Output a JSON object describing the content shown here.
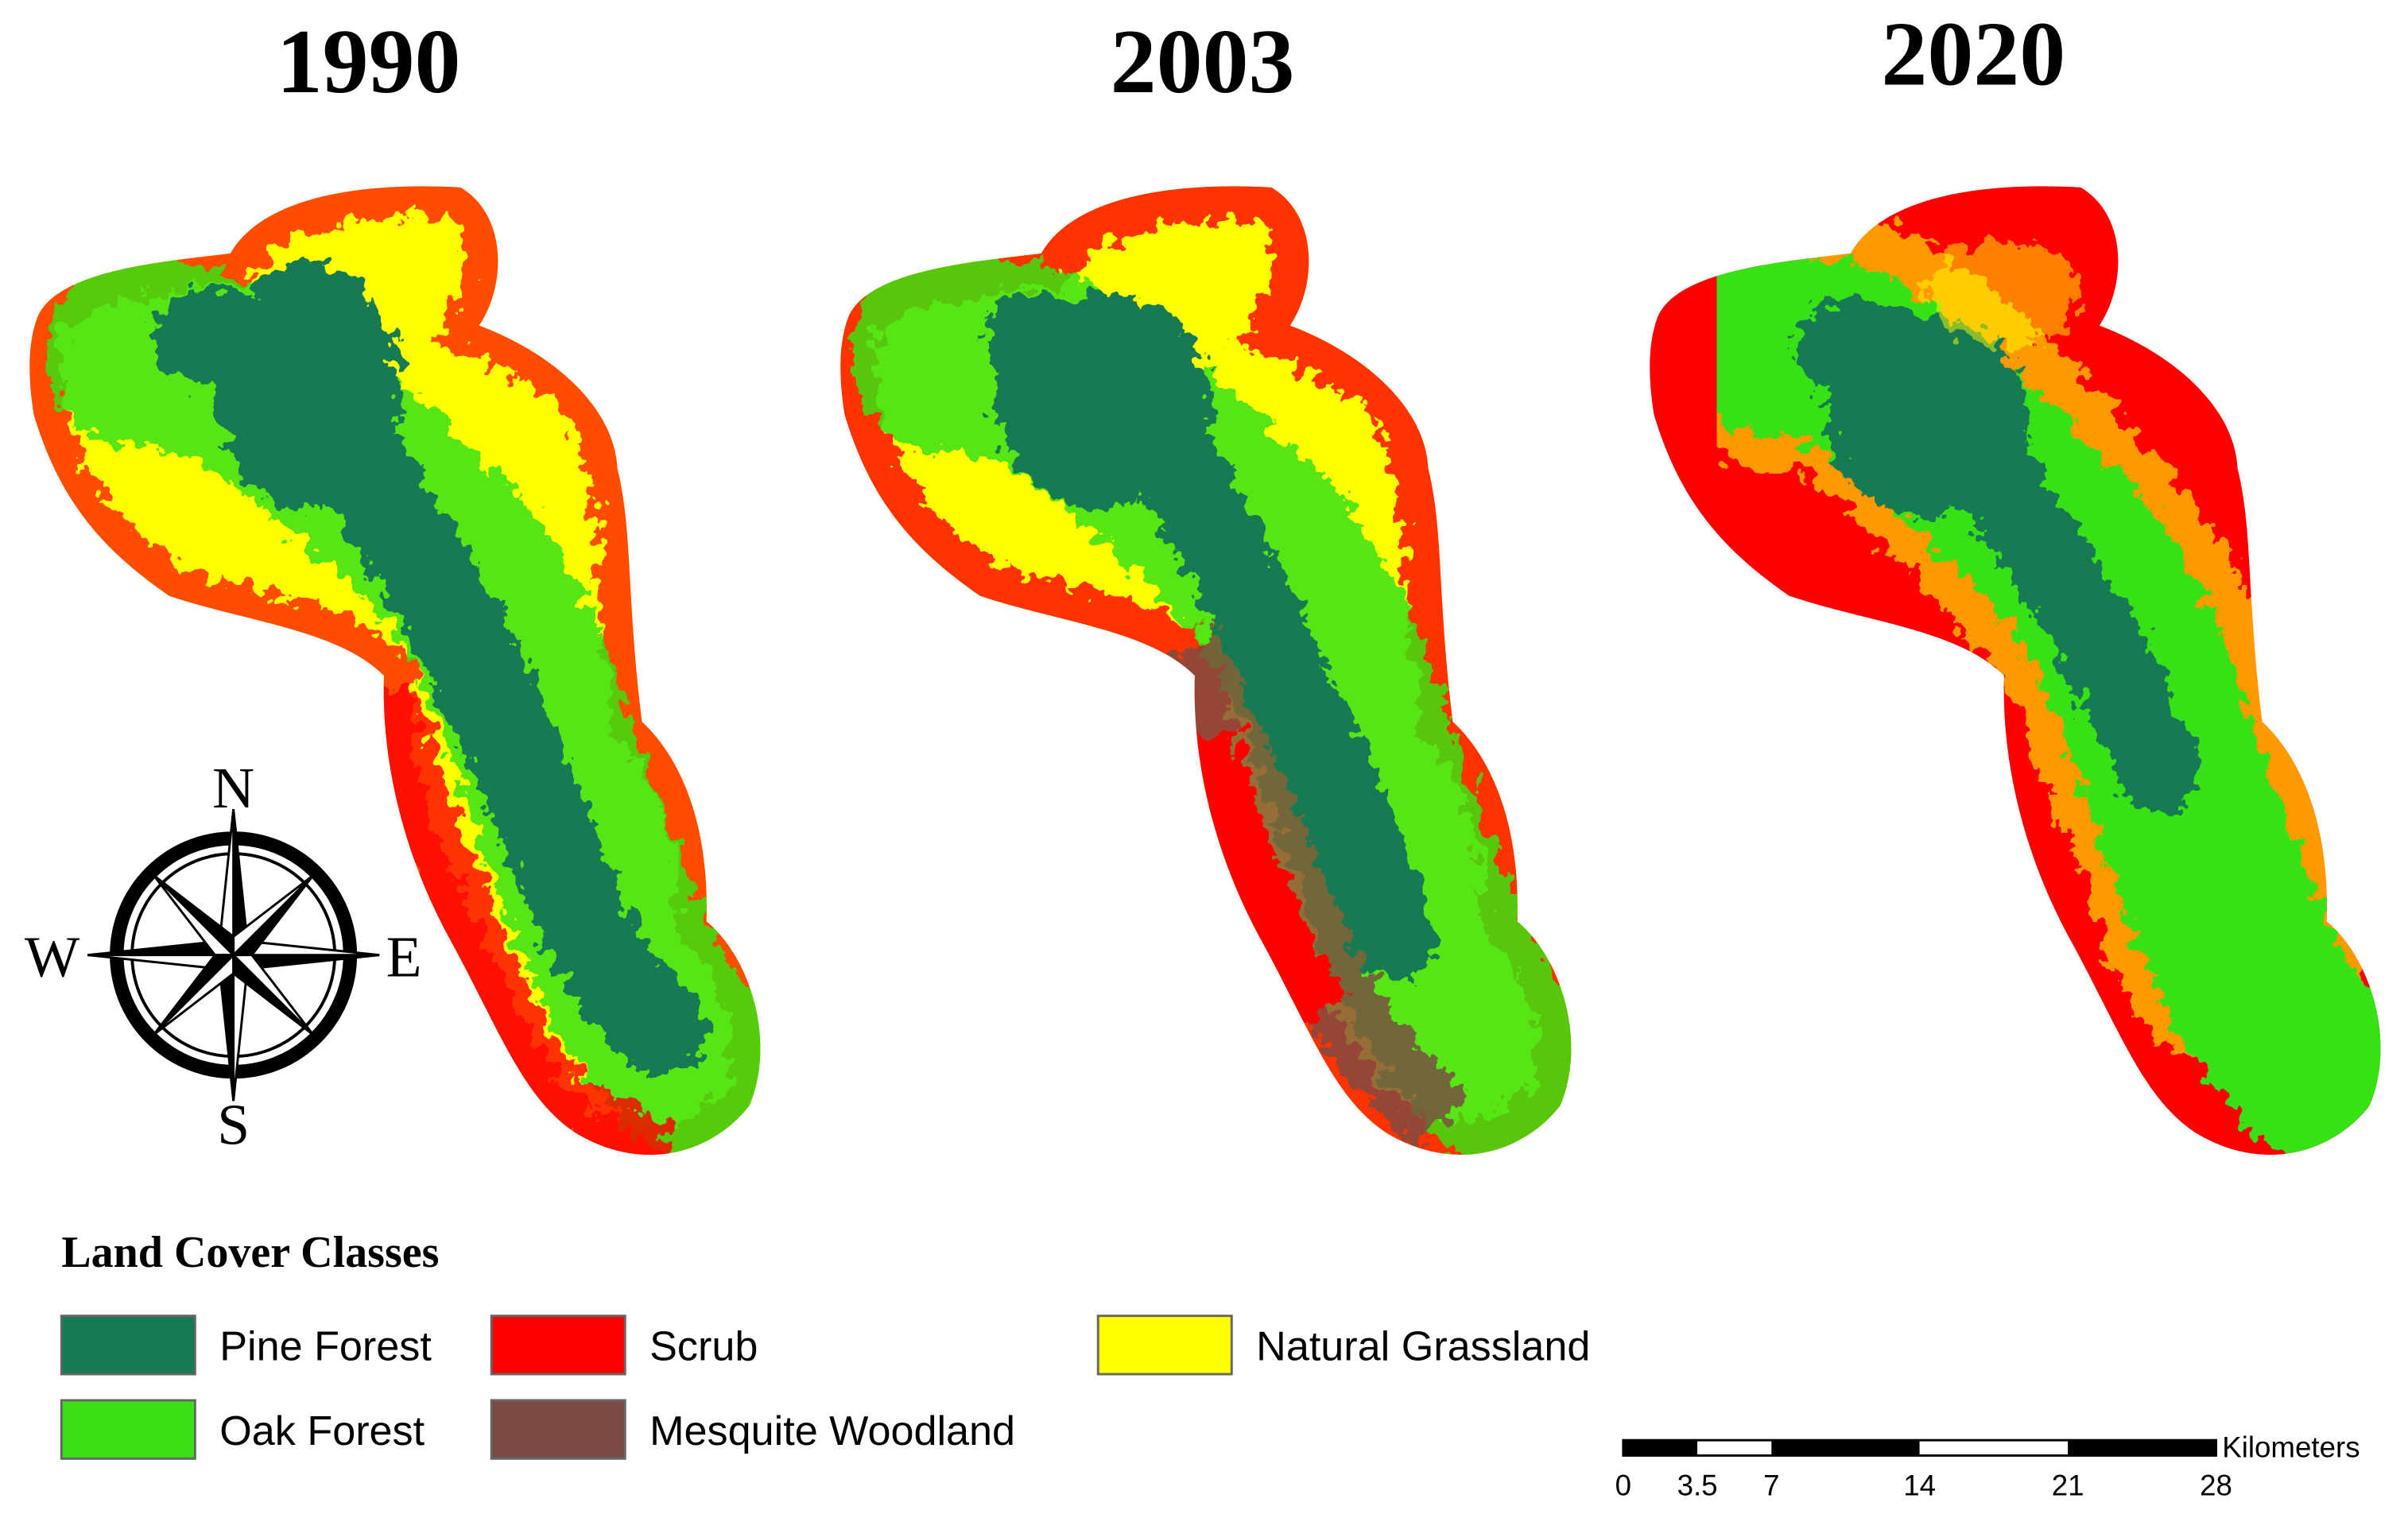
{
  "panels": [
    {
      "title": "1990"
    },
    {
      "title": "2003"
    },
    {
      "title": "2020"
    }
  ],
  "compass": {
    "north": "N",
    "south": "S",
    "west": "W",
    "east": "E"
  },
  "legend": {
    "title": "Land Cover Classes",
    "items": [
      {
        "name": "Pine Forest",
        "color": "#137a52"
      },
      {
        "name": "Scrub",
        "color": "#ff0000"
      },
      {
        "name": "Natural Grassland",
        "color": "#ffff00"
      },
      {
        "name": "Oak Forest",
        "color": "#38e014"
      },
      {
        "name": "Mesquite Woodland",
        "color": "#7b4a45"
      }
    ]
  },
  "scale_bar": {
    "unit": "Kilometers",
    "ticks": [
      0,
      3.5,
      7,
      14,
      21,
      28
    ]
  }
}
